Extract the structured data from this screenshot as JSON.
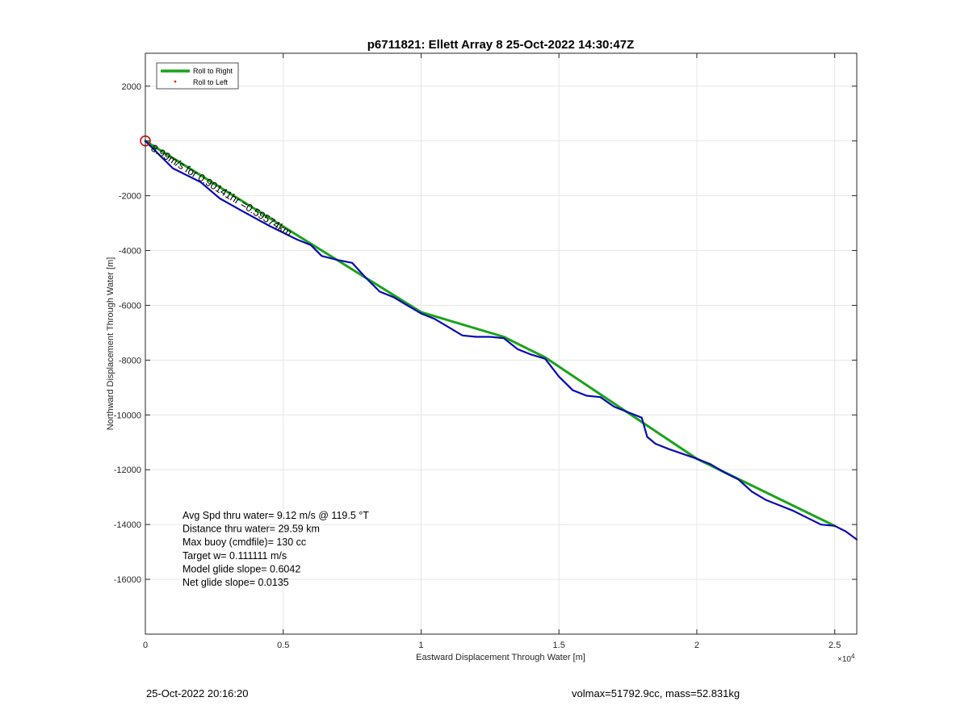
{
  "chart_data": {
    "type": "line",
    "title": "p6711821: Ellett Array 8 25-Oct-2022 14:30:47Z",
    "xlabel": "Eastward Displacement Through Water [m]",
    "ylabel": "Northward Displacement Through Water [m]",
    "x_exponent_label": "×10",
    "x_exponent_power": "4",
    "xlim": [
      0,
      25800
    ],
    "ylim": [
      -18000,
      3200
    ],
    "x_ticks": [
      0,
      5000,
      10000,
      15000,
      20000,
      25000
    ],
    "x_tick_labels": [
      "0",
      "0.5",
      "1",
      "1.5",
      "2",
      "2.5"
    ],
    "y_ticks": [
      2000,
      0,
      -2000,
      -4000,
      -6000,
      -8000,
      -10000,
      -12000,
      -14000,
      -16000
    ],
    "y_tick_labels": [
      "2000",
      "",
      "-2000",
      "-4000",
      "-6000",
      "-8000",
      "-10000",
      "-12000",
      "-14000",
      "-16000"
    ],
    "grid": true,
    "legend_position": "top-left",
    "series": [
      {
        "name": "Roll to Right",
        "color": "#1aa31a",
        "style": "thick-line",
        "x": [
          0,
          10000,
          13000,
          14500,
          20000,
          25000
        ],
        "y": [
          0,
          -6250,
          -7150,
          -7900,
          -11600,
          -14050
        ]
      },
      {
        "name": "Roll to Left",
        "color": "#e60000",
        "style": "dot",
        "x": [],
        "y": []
      },
      {
        "color": "#0a0ab4",
        "style": "line",
        "x": [
          0,
          1000,
          2000,
          2700,
          3500,
          4500,
          5500,
          6000,
          6400,
          7000,
          7500,
          8000,
          8500,
          9000,
          9500,
          10000,
          10500,
          11000,
          11500,
          12000,
          12500,
          13000,
          13500,
          14000,
          14500,
          15000,
          15500,
          16000,
          16500,
          17000,
          17500,
          18000,
          18200,
          18500,
          19000,
          20000,
          20500,
          21000,
          21500,
          22000,
          22500,
          23000,
          23500,
          24000,
          24500,
          25000,
          25400,
          25800
        ],
        "y": [
          0,
          -1000,
          -1500,
          -2100,
          -2550,
          -3100,
          -3600,
          -3800,
          -4200,
          -4350,
          -4450,
          -5000,
          -5500,
          -5700,
          -6000,
          -6300,
          -6500,
          -6800,
          -7100,
          -7150,
          -7150,
          -7200,
          -7600,
          -7800,
          -7950,
          -8600,
          -9100,
          -9300,
          -9350,
          -9700,
          -9900,
          -10100,
          -10800,
          -11050,
          -11250,
          -11600,
          -11800,
          -12100,
          -12350,
          -12800,
          -13100,
          -13300,
          -13500,
          -13750,
          -14000,
          -14050,
          -14250,
          -14550
        ]
      }
    ],
    "start_marker": {
      "type": "circle",
      "color": "#cc0000",
      "x": 0,
      "y": 0
    },
    "annotations": {
      "rotated_label": "8.99m/s for 0.90141hr =0.59574km"
    },
    "stats_text": [
      "Avg Spd thru water=  9.12 m/s @ 119.5 °T",
      "Distance thru water= 29.59 km",
      "Max buoy (cmdfile)= 130 cc",
      "Target w= 0.111111 m/s",
      "Model glide slope= 0.6042",
      "Net glide slope= 0.0135"
    ]
  },
  "footer": {
    "left": "25-Oct-2022 20:16:20",
    "right": "volmax=51792.9cc, mass=52.831kg"
  }
}
